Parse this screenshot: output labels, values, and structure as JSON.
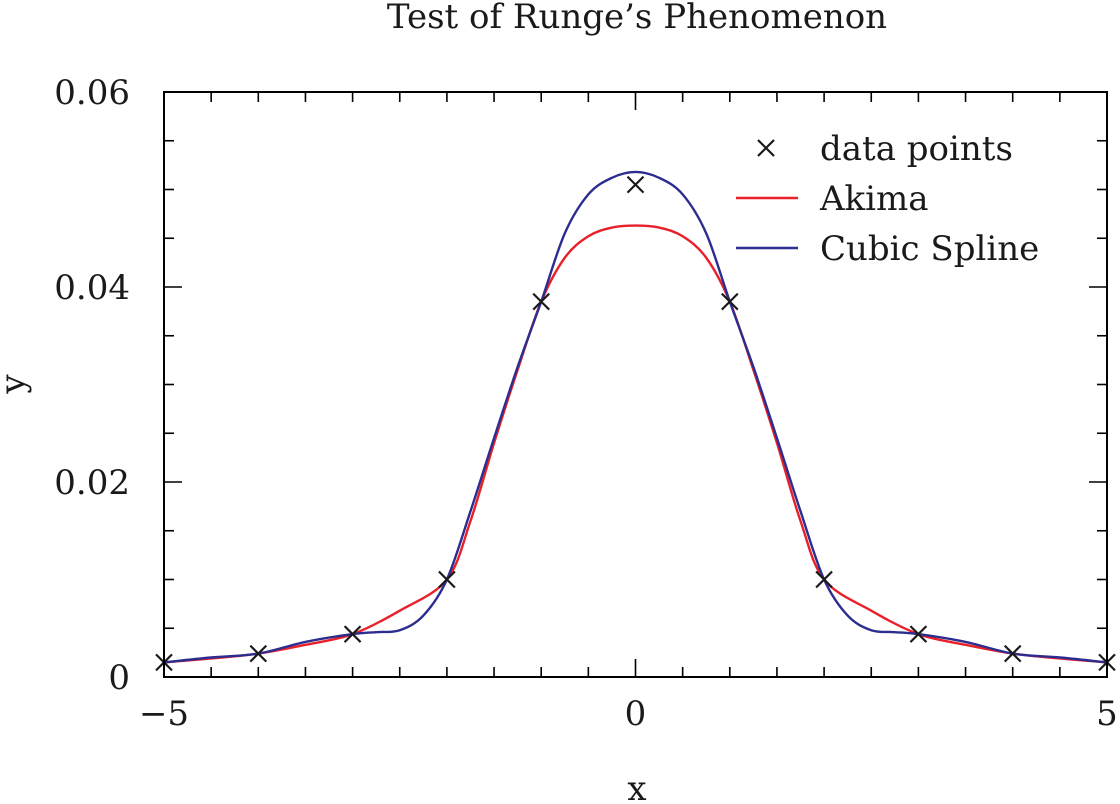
{
  "chart_data": {
    "type": "line",
    "title": "Test of Runge’s Phenomenon",
    "xlabel": "x",
    "ylabel": "y",
    "xlim": [
      -5,
      5
    ],
    "ylim": [
      0,
      0.06
    ],
    "x_ticks": [
      -5,
      0,
      5
    ],
    "x_tick_labels": [
      "−5",
      "0",
      "5"
    ],
    "y_ticks": [
      0,
      0.02,
      0.04,
      0.06
    ],
    "y_tick_labels": [
      "0",
      "0.02",
      "0.04",
      "0.06"
    ],
    "legend_position": "top-right",
    "grid": false,
    "data_points": {
      "name": "data points",
      "marker": "x",
      "color": "#1a1a1a",
      "x": [
        -5,
        -4,
        -3,
        -2,
        -1,
        0,
        1,
        2,
        3,
        4,
        5
      ],
      "y": [
        0.0015,
        0.0024,
        0.0044,
        0.01,
        0.0385,
        0.0505,
        0.0385,
        0.01,
        0.0044,
        0.0024,
        0.0015
      ]
    },
    "series": [
      {
        "name": "Akima",
        "color": "#e8202a",
        "x": [
          -5,
          -4.5,
          -4,
          -3.5,
          -3,
          -2.5,
          -2,
          -1.75,
          -1.5,
          -1.25,
          -1,
          -0.75,
          -0.5,
          -0.25,
          0,
          0.25,
          0.5,
          0.75,
          1,
          1.25,
          1.5,
          1.75,
          2,
          2.5,
          3,
          3.5,
          4,
          4.5,
          5
        ],
        "y": [
          0.0015,
          0.0019,
          0.0024,
          0.0033,
          0.0044,
          0.0068,
          0.01,
          0.016,
          0.024,
          0.0315,
          0.0385,
          0.043,
          0.0452,
          0.0461,
          0.0463,
          0.0461,
          0.0452,
          0.043,
          0.0385,
          0.0315,
          0.024,
          0.016,
          0.01,
          0.0068,
          0.0044,
          0.0033,
          0.0024,
          0.0019,
          0.0015
        ]
      },
      {
        "name": "Cubic Spline",
        "color": "#2b2d8f",
        "x": [
          -5,
          -4.5,
          -4,
          -3.5,
          -3,
          -2.75,
          -2.5,
          -2.25,
          -2,
          -1.75,
          -1.5,
          -1.25,
          -1,
          -0.75,
          -0.5,
          -0.25,
          0,
          0.25,
          0.5,
          0.75,
          1,
          1.25,
          1.5,
          1.75,
          2,
          2.25,
          2.5,
          2.75,
          3,
          3.5,
          4,
          4.5,
          5
        ],
        "y": [
          0.0015,
          0.002,
          0.0024,
          0.0036,
          0.0044,
          0.0046,
          0.0048,
          0.0063,
          0.01,
          0.017,
          0.0245,
          0.0318,
          0.0385,
          0.0455,
          0.0495,
          0.0512,
          0.0518,
          0.0512,
          0.0495,
          0.0455,
          0.0385,
          0.0318,
          0.0245,
          0.017,
          0.01,
          0.0063,
          0.0048,
          0.0046,
          0.0044,
          0.0036,
          0.0024,
          0.002,
          0.0015
        ]
      }
    ]
  }
}
